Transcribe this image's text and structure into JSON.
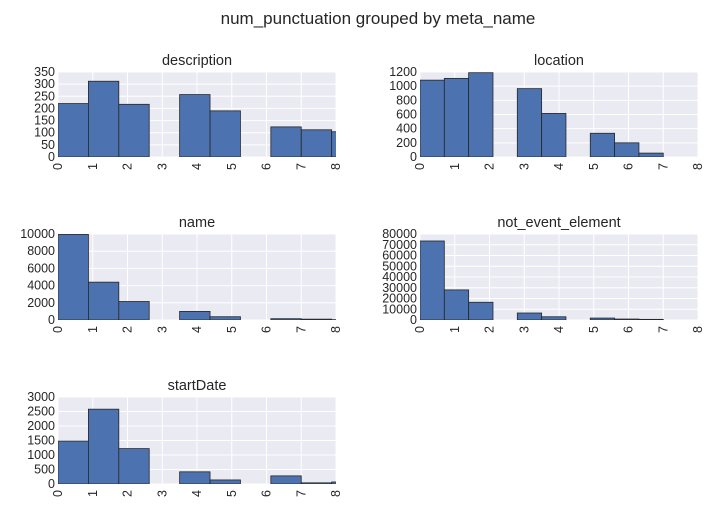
{
  "title": "num_punctuation grouped by meta_name",
  "chart_data": [
    {
      "type": "bar",
      "title": "description",
      "bin_edges": [
        0,
        1,
        2,
        3,
        4,
        5,
        6,
        7,
        8
      ],
      "bars": [
        {
          "x0": 0.0,
          "x1": 0.875,
          "value": 220
        },
        {
          "x0": 0.875,
          "x1": 1.75,
          "value": 312
        },
        {
          "x0": 1.75,
          "x1": 2.625,
          "value": 217
        },
        {
          "x0": 2.625,
          "x1": 3.5,
          "value": 0
        },
        {
          "x0": 3.5,
          "x1": 4.375,
          "value": 257
        },
        {
          "x0": 4.375,
          "x1": 5.25,
          "value": 190
        },
        {
          "x0": 5.25,
          "x1": 6.125,
          "value": 0
        },
        {
          "x0": 6.125,
          "x1": 7.0,
          "value": 124
        },
        {
          "x0": 7.0,
          "x1": 7.875,
          "value": 112
        },
        {
          "x0": 7.875,
          "x1": 8.75,
          "value": 104
        }
      ],
      "xlim": [
        0,
        8
      ],
      "ylim": [
        0,
        350
      ],
      "yticks": [
        0,
        50,
        100,
        150,
        200,
        250,
        300,
        350
      ],
      "xticks": [
        0,
        1,
        2,
        3,
        4,
        5,
        6,
        7,
        8
      ]
    },
    {
      "type": "bar",
      "title": "location",
      "bars": [
        {
          "x0": 0.0,
          "x1": 0.7,
          "value": 1085
        },
        {
          "x0": 0.7,
          "x1": 1.4,
          "value": 1110
        },
        {
          "x0": 1.4,
          "x1": 2.1,
          "value": 1190
        },
        {
          "x0": 2.1,
          "x1": 2.8,
          "value": 0
        },
        {
          "x0": 2.8,
          "x1": 3.5,
          "value": 965
        },
        {
          "x0": 3.5,
          "x1": 4.2,
          "value": 615
        },
        {
          "x0": 4.2,
          "x1": 4.9,
          "value": 0
        },
        {
          "x0": 4.9,
          "x1": 5.6,
          "value": 335
        },
        {
          "x0": 5.6,
          "x1": 6.3,
          "value": 200
        },
        {
          "x0": 6.3,
          "x1": 7.0,
          "value": 55
        }
      ],
      "xlim": [
        0,
        8
      ],
      "ylim": [
        0,
        1200
      ],
      "yticks": [
        0,
        200,
        400,
        600,
        800,
        1000,
        1200
      ],
      "xticks": [
        0,
        1,
        2,
        3,
        4,
        5,
        6,
        7,
        8
      ]
    },
    {
      "type": "bar",
      "title": "name",
      "bars": [
        {
          "x0": 0.0,
          "x1": 0.875,
          "value": 9950
        },
        {
          "x0": 0.875,
          "x1": 1.75,
          "value": 4400
        },
        {
          "x0": 1.75,
          "x1": 2.625,
          "value": 2150
        },
        {
          "x0": 2.625,
          "x1": 3.5,
          "value": 0
        },
        {
          "x0": 3.5,
          "x1": 4.375,
          "value": 1000
        },
        {
          "x0": 4.375,
          "x1": 5.25,
          "value": 380
        },
        {
          "x0": 5.25,
          "x1": 6.125,
          "value": 0
        },
        {
          "x0": 6.125,
          "x1": 7.0,
          "value": 150
        },
        {
          "x0": 7.0,
          "x1": 7.875,
          "value": 100
        },
        {
          "x0": 7.875,
          "x1": 8.75,
          "value": 40
        }
      ],
      "xlim": [
        0,
        8
      ],
      "ylim": [
        0,
        10000
      ],
      "yticks": [
        0,
        2000,
        4000,
        6000,
        8000,
        10000
      ],
      "xticks": [
        0,
        1,
        2,
        3,
        4,
        5,
        6,
        7,
        8
      ]
    },
    {
      "type": "bar",
      "title": "not_event_element",
      "bars": [
        {
          "x0": 0.0,
          "x1": 0.7,
          "value": 73500
        },
        {
          "x0": 0.7,
          "x1": 1.4,
          "value": 28000
        },
        {
          "x0": 1.4,
          "x1": 2.1,
          "value": 16500
        },
        {
          "x0": 2.1,
          "x1": 2.8,
          "value": 0
        },
        {
          "x0": 2.8,
          "x1": 3.5,
          "value": 6500
        },
        {
          "x0": 3.5,
          "x1": 4.2,
          "value": 3000
        },
        {
          "x0": 4.2,
          "x1": 4.9,
          "value": 0
        },
        {
          "x0": 4.9,
          "x1": 5.6,
          "value": 1800
        },
        {
          "x0": 5.6,
          "x1": 6.3,
          "value": 900
        },
        {
          "x0": 6.3,
          "x1": 7.0,
          "value": 600
        }
      ],
      "xlim": [
        0,
        8
      ],
      "ylim": [
        0,
        80000
      ],
      "yticks": [
        0,
        10000,
        20000,
        30000,
        40000,
        50000,
        60000,
        70000,
        80000
      ],
      "xticks": [
        0,
        1,
        2,
        3,
        4,
        5,
        6,
        7,
        8
      ]
    },
    {
      "type": "bar",
      "title": "startDate",
      "bars": [
        {
          "x0": 0.0,
          "x1": 0.875,
          "value": 1480
        },
        {
          "x0": 0.875,
          "x1": 1.75,
          "value": 2580
        },
        {
          "x0": 1.75,
          "x1": 2.625,
          "value": 1220
        },
        {
          "x0": 2.625,
          "x1": 3.5,
          "value": 0
        },
        {
          "x0": 3.5,
          "x1": 4.375,
          "value": 420
        },
        {
          "x0": 4.375,
          "x1": 5.25,
          "value": 140
        },
        {
          "x0": 5.25,
          "x1": 6.125,
          "value": 0
        },
        {
          "x0": 6.125,
          "x1": 7.0,
          "value": 280
        },
        {
          "x0": 7.0,
          "x1": 7.875,
          "value": 40
        },
        {
          "x0": 7.875,
          "x1": 8.75,
          "value": 70
        }
      ],
      "xlim": [
        0,
        8
      ],
      "ylim": [
        0,
        3000
      ],
      "yticks": [
        0,
        500,
        1000,
        1500,
        2000,
        2500,
        3000
      ],
      "xticks": [
        0,
        1,
        2,
        3,
        4,
        5,
        6,
        7,
        8
      ]
    }
  ],
  "colors": {
    "bar": "#4c72b0",
    "bar_edge": "#262626",
    "panel_bg": "#eaeaf2",
    "grid": "#ffffff",
    "text": "#262626"
  }
}
